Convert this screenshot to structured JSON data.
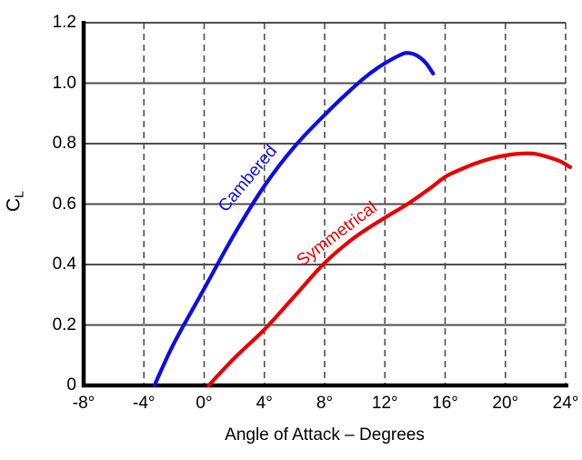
{
  "chart_data": {
    "type": "line",
    "title": "",
    "xlabel": "Angle of Attack – Degrees",
    "ylabel_main": "C",
    "ylabel_subscript": "L",
    "xlim": [
      -8,
      24
    ],
    "ylim": [
      0,
      1.2
    ],
    "grid": {
      "vertical": "dashed",
      "horizontal": "solid",
      "on": true
    },
    "legend_position": "inline-rotated-labels",
    "xticks": {
      "values": [
        -8,
        -4,
        0,
        4,
        8,
        12,
        16,
        20,
        24
      ],
      "labels": [
        "-8°",
        "-4°",
        "0°",
        "4°",
        "8°",
        "12°",
        "16°",
        "20°",
        "24°"
      ]
    },
    "yticks": {
      "values": [
        0,
        0.2,
        0.4,
        0.6,
        0.8,
        1.0,
        1.2
      ],
      "labels": [
        "0",
        "0.2",
        "0.4",
        "0.6",
        "0.8",
        "1.0",
        "1.2"
      ]
    },
    "series": [
      {
        "name": "Cambered",
        "color": "#0d0de0",
        "zero_lift_angle_deg": -3.3,
        "max_cl": 1.1,
        "angle_at_max_cl_deg": 13.5,
        "points": [
          [
            -3.3,
            0
          ],
          [
            -2,
            0.14
          ],
          [
            0,
            0.32
          ],
          [
            2,
            0.5
          ],
          [
            4,
            0.66
          ],
          [
            6,
            0.79
          ],
          [
            8,
            0.895
          ],
          [
            10,
            0.99
          ],
          [
            11,
            1.032
          ],
          [
            12,
            1.066
          ],
          [
            13,
            1.093
          ],
          [
            13.5,
            1.1
          ],
          [
            14.1,
            1.092
          ],
          [
            14.7,
            1.068
          ],
          [
            15.2,
            1.032
          ]
        ]
      },
      {
        "name": "Symmetrical",
        "color": "#e80000",
        "zero_lift_angle_deg": 0.3,
        "max_cl": 0.767,
        "angle_at_max_cl_deg": 21.3,
        "points": [
          [
            0.3,
            0
          ],
          [
            2,
            0.09
          ],
          [
            4,
            0.185
          ],
          [
            6,
            0.295
          ],
          [
            8,
            0.405
          ],
          [
            10,
            0.49
          ],
          [
            12,
            0.555
          ],
          [
            13.5,
            0.6
          ],
          [
            15,
            0.652
          ],
          [
            16,
            0.69
          ],
          [
            17,
            0.714
          ],
          [
            18,
            0.734
          ],
          [
            19,
            0.75
          ],
          [
            20,
            0.761
          ],
          [
            21,
            0.767
          ],
          [
            22,
            0.766
          ],
          [
            23,
            0.753
          ],
          [
            23.7,
            0.74
          ],
          [
            24.3,
            0.722
          ]
        ]
      }
    ]
  },
  "colors": {
    "background": "#ffffff",
    "axis": "#000000",
    "grid": "#4d4d4d",
    "text": "#000000"
  }
}
